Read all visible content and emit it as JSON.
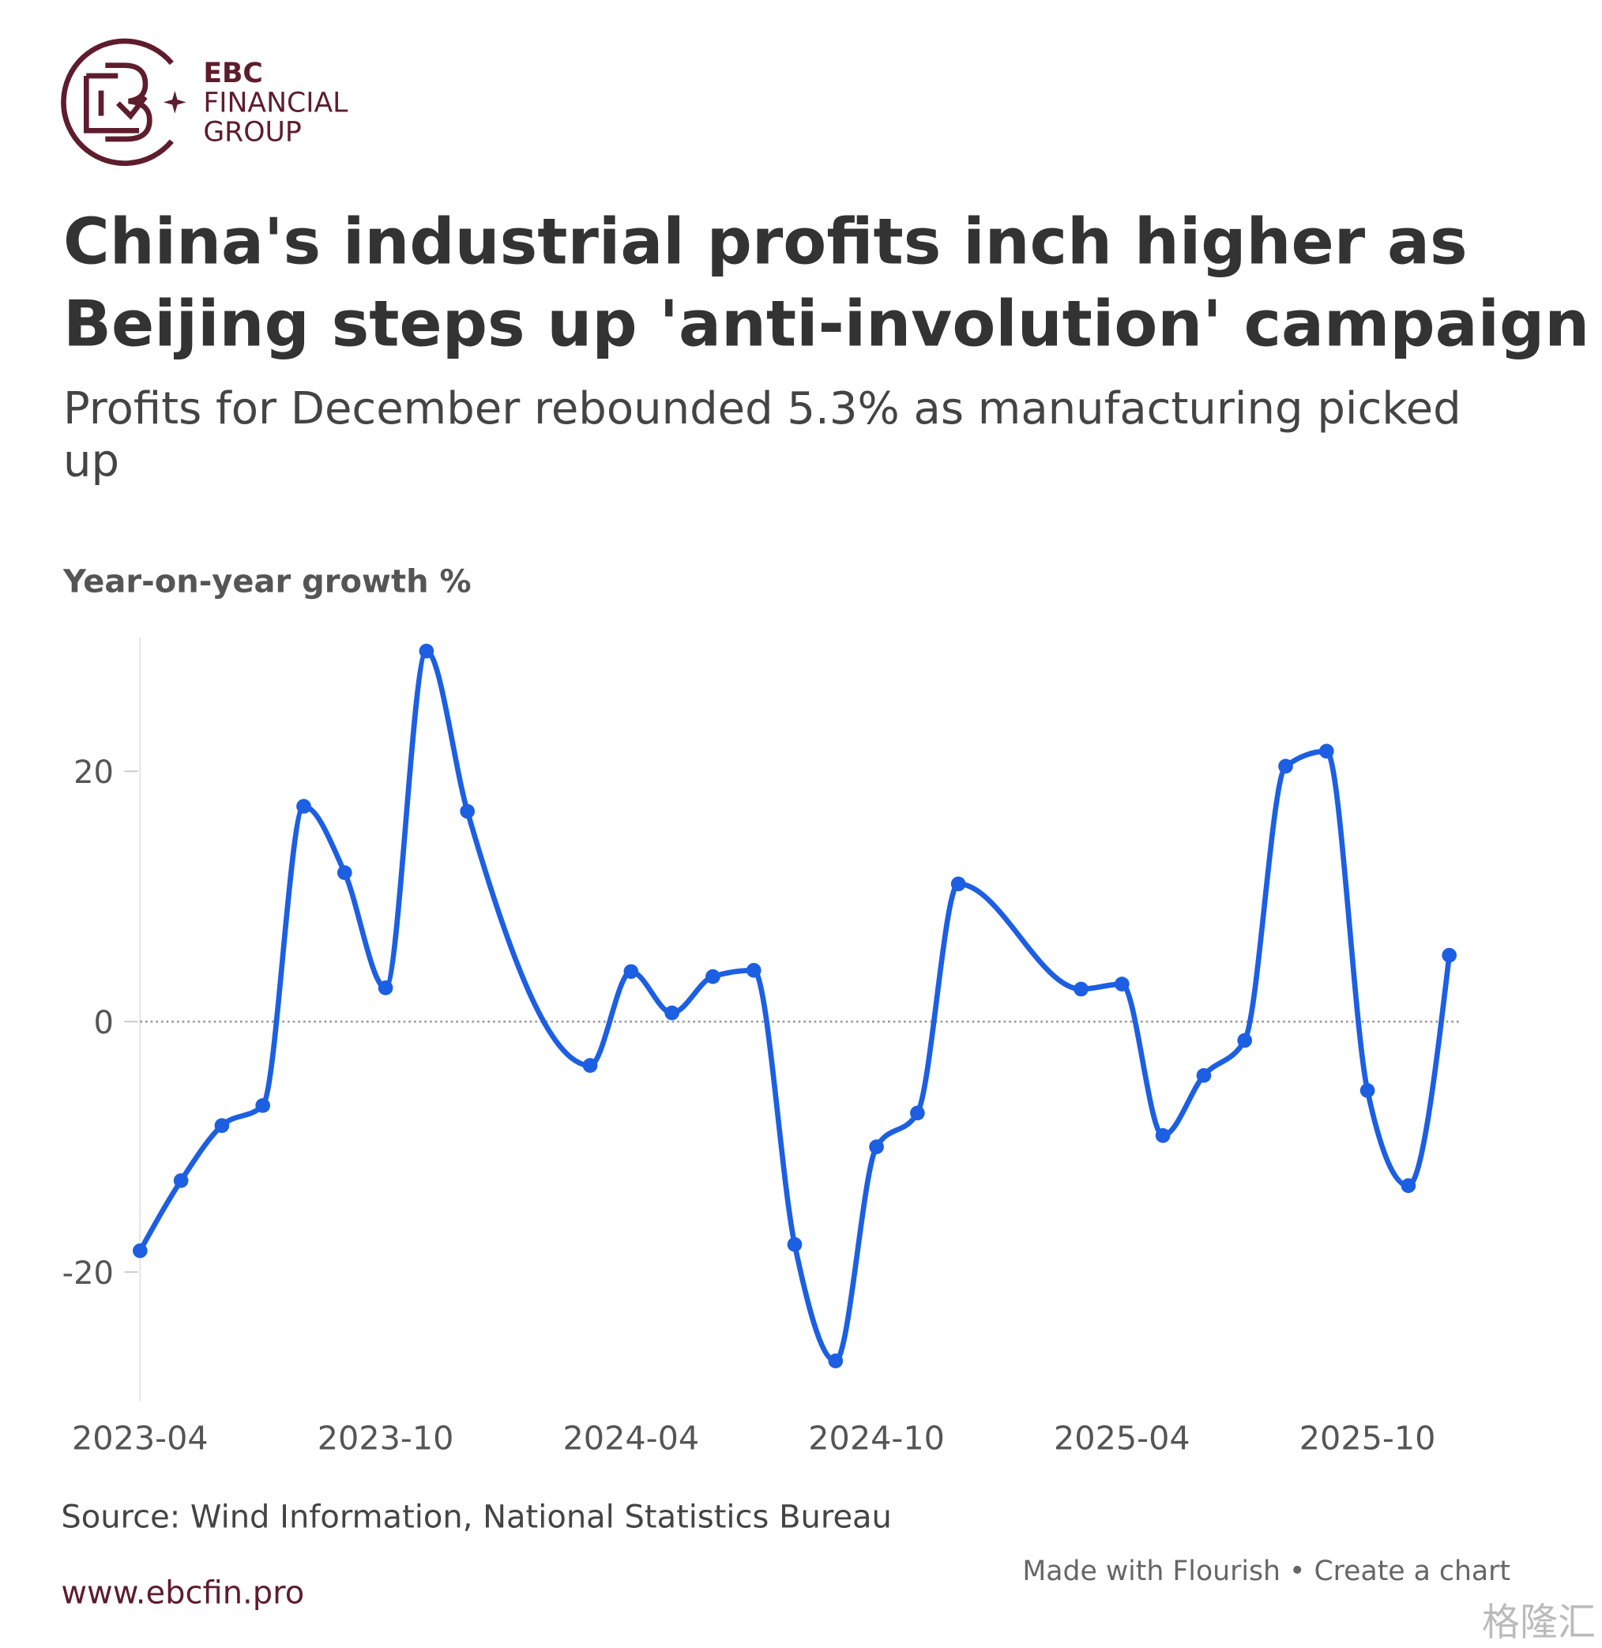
{
  "brand": {
    "name": "EBC",
    "line1": "FINANCIAL",
    "line2": "GROUP",
    "website": "www.ebcfin.pro",
    "watermark": "格隆汇"
  },
  "chart_data": {
    "type": "line",
    "title": [
      "China's industrial profits inch higher as",
      "Beijing steps up 'anti-involution' campaign"
    ],
    "subtitle": [
      "Profits for December rebounded 5.3% as manufacturing picked",
      "up"
    ],
    "y_label": "Year-on-year growth %",
    "source": "Source: Wind Information, National Statistics Bureau",
    "credit": "Made with Flourish • Create a chart",
    "x": [
      "2023-04",
      "2023-05",
      "2023-06",
      "2023-07",
      "2023-08",
      "2023-09",
      "2023-10",
      "2023-11",
      "2023-12",
      "2024-03",
      "2024-04",
      "2024-05",
      "2024-06",
      "2024-07",
      "2024-08",
      "2024-09",
      "2024-10",
      "2024-11",
      "2024-12",
      "2025-03",
      "2025-04",
      "2025-05",
      "2025-06",
      "2025-07",
      "2025-08",
      "2025-09",
      "2025-10",
      "2025-11",
      "2025-12"
    ],
    "series": [
      {
        "name": "Year-on-year growth %",
        "color": "#1c5fe3",
        "values": [
          -18.3,
          -12.7,
          -8.3,
          -6.7,
          17.2,
          11.9,
          2.7,
          29.6,
          16.8,
          -3.5,
          4.0,
          0.7,
          3.6,
          4.1,
          -17.8,
          -27.1,
          -10.0,
          -7.3,
          11.0,
          2.6,
          3.0,
          -9.1,
          -4.3,
          -1.5,
          20.4,
          21.6,
          -5.5,
          -13.1,
          5.3
        ]
      }
    ],
    "xlim": [
      "2023-04",
      "2025-12"
    ],
    "xticks": [
      "2023-04",
      "2023-10",
      "2024-04",
      "2024-10",
      "2025-04",
      "2025-10"
    ],
    "ylim": [
      -30.3,
      30.7
    ],
    "yticks": [
      20,
      0,
      -20
    ],
    "zero_line": true
  }
}
